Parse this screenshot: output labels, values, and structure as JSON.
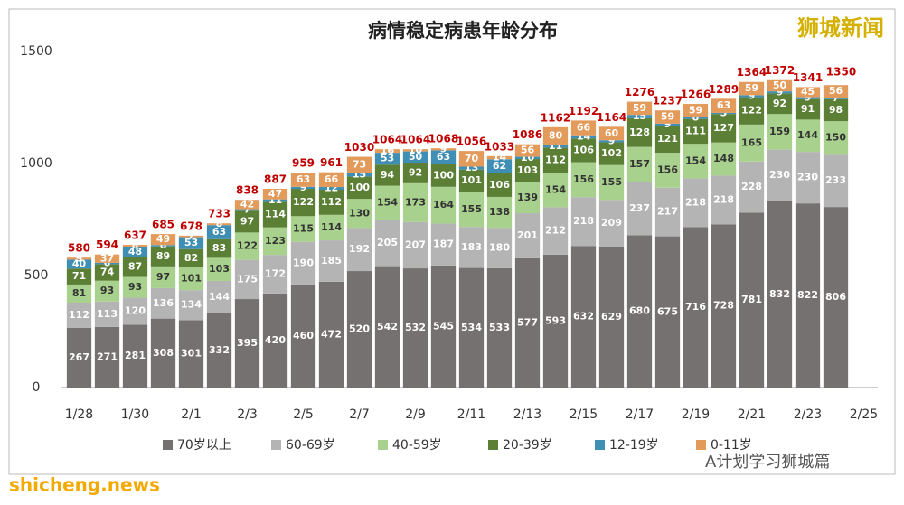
{
  "chart_data": {
    "type": "stacked_bar",
    "title": "病情稳定病患年龄分布",
    "categories": [
      "1/28",
      null,
      "1/30",
      null,
      "2/1",
      null,
      "2/3",
      null,
      "2/5",
      null,
      "2/7",
      null,
      "2/9",
      null,
      "2/11",
      null,
      "2/13",
      null,
      "2/15",
      null,
      "2/17",
      null,
      "2/19",
      null,
      "2/21",
      null,
      "2/23",
      null,
      "2/25"
    ],
    "series": [
      {
        "name": "70岁以上",
        "color": "#767171",
        "values": [
          267,
          271,
          281,
          308,
          301,
          332,
          395,
          420,
          460,
          472,
          520,
          542,
          532,
          545,
          534,
          533,
          577,
          593,
          632,
          629,
          680,
          675,
          716,
          728,
          781,
          832,
          822,
          806,
          null
        ]
      },
      {
        "name": "60-69岁",
        "color": "#b4b4b4",
        "values": [
          112,
          113,
          120,
          136,
          134,
          144,
          175,
          172,
          190,
          185,
          192,
          205,
          207,
          187,
          183,
          180,
          201,
          212,
          218,
          209,
          237,
          217,
          218,
          218,
          228,
          230,
          230,
          233,
          null
        ]
      },
      {
        "name": "40-59岁",
        "color": "#a9d18e",
        "values": [
          81,
          93,
          93,
          97,
          101,
          103,
          122,
          123,
          115,
          114,
          130,
          154,
          173,
          164,
          155,
          138,
          139,
          154,
          156,
          155,
          157,
          156,
          154,
          148,
          165,
          159,
          144,
          150,
          null
        ]
      },
      {
        "name": "20-39岁",
        "color": "#5b7f35",
        "values": [
          71,
          74,
          87,
          89,
          82,
          83,
          97,
          114,
          122,
          112,
          100,
          94,
          92,
          100,
          101,
          106,
          103,
          112,
          106,
          102,
          128,
          121,
          111,
          127,
          122,
          92,
          91,
          98,
          null
        ]
      },
      {
        "name": "12-19岁",
        "color": "#3f8fb5",
        "values": [
          40,
          6,
          48,
          6,
          53,
          63,
          7,
          11,
          9,
          12,
          15,
          53,
          50,
          63,
          13,
          62,
          10,
          11,
          14,
          9,
          15,
          9,
          8,
          5,
          9,
          9,
          9,
          7,
          null
        ]
      },
      {
        "name": "0-11岁",
        "color": "#e39b5b",
        "values": [
          9,
          37,
          8,
          49,
          7,
          8,
          42,
          47,
          63,
          66,
          73,
          16,
          10,
          9,
          70,
          14,
          56,
          80,
          66,
          60,
          59,
          59,
          59,
          63,
          59,
          50,
          45,
          56,
          null
        ]
      }
    ],
    "totals": [
      580,
      594,
      637,
      685,
      678,
      733,
      838,
      887,
      959,
      961,
      1030,
      1064,
      1064,
      1068,
      1056,
      1033,
      1086,
      1162,
      1192,
      1164,
      1276,
      1237,
      1266,
      1289,
      1364,
      1372,
      1341,
      1350,
      null
    ],
    "ylim": [
      0,
      1500
    ],
    "yticks": [
      0,
      500,
      1000,
      1500
    ],
    "grid": false
  },
  "watermark": "狮城新闻",
  "site": "shicheng.news",
  "account": "A计划学习狮城篇"
}
